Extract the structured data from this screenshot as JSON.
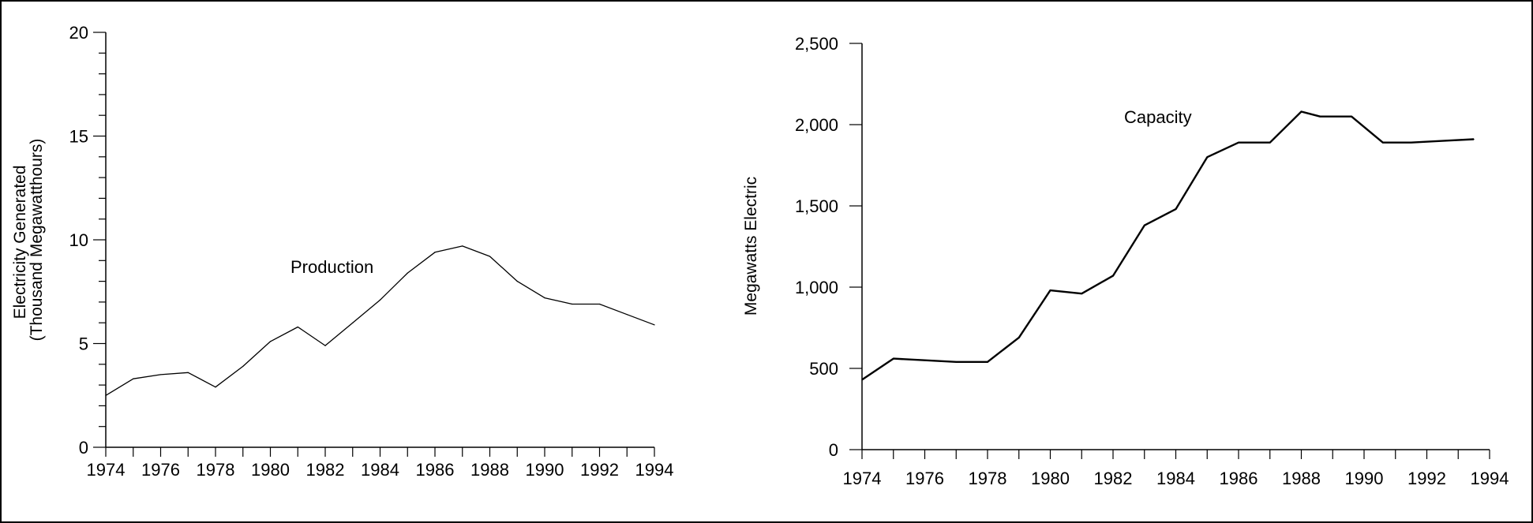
{
  "chart_data": [
    {
      "type": "line",
      "title": "",
      "xlabel": "",
      "ylabel_lines": [
        "Electricity Generated",
        "(Thousand Megawatthours)"
      ],
      "x_ticks": [
        1974,
        1976,
        1978,
        1980,
        1982,
        1984,
        1986,
        1988,
        1990,
        1992,
        1994
      ],
      "y_ticks": [
        0,
        5,
        10,
        15,
        20
      ],
      "y_tick_labels": [
        "0",
        "5",
        "10",
        "15",
        "20"
      ],
      "xlim": [
        1974,
        1994
      ],
      "ylim": [
        0,
        20
      ],
      "series_label": "Production",
      "series": [
        {
          "x": [
            1974,
            1975,
            1976,
            1977,
            1978,
            1979,
            1980,
            1981,
            1982,
            1983,
            1984,
            1985,
            1986,
            1987,
            1988,
            1989,
            1990,
            1991,
            1992,
            1993,
            1994
          ],
          "values": [
            2.5,
            3.3,
            3.5,
            3.6,
            2.9,
            3.9,
            5.1,
            5.8,
            4.9,
            6.0,
            7.1,
            8.4,
            9.4,
            9.7,
            9.2,
            8.0,
            7.2,
            6.9,
            6.9,
            6.4,
            5.9
          ]
        }
      ],
      "grid": false
    },
    {
      "type": "line",
      "title": "",
      "xlabel": "",
      "ylabel_lines": [
        "Megawatts Electric"
      ],
      "x_ticks": [
        1974,
        1976,
        1978,
        1980,
        1982,
        1984,
        1986,
        1988,
        1990,
        1992,
        1994
      ],
      "y_ticks": [
        0,
        500,
        1000,
        1500,
        2000,
        2500
      ],
      "y_tick_labels": [
        "0",
        "500",
        "1,000",
        "1,500",
        "2,000",
        "2,500"
      ],
      "xlim": [
        1974,
        1994
      ],
      "ylim": [
        0,
        2500
      ],
      "series_label": "Capacity",
      "series": [
        {
          "x": [
            1974,
            1975,
            1976,
            1977,
            1978,
            1979,
            1980,
            1981,
            1982,
            1983,
            1984,
            1985,
            1986,
            1987,
            1988,
            1988.6,
            1989.6,
            1990.6,
            1991.5,
            1992.5,
            1993.5
          ],
          "values": [
            430,
            560,
            550,
            540,
            540,
            690,
            980,
            960,
            1070,
            1380,
            1480,
            1800,
            1890,
            1890,
            2080,
            2050,
            2050,
            1890,
            1890,
            1900,
            1910
          ]
        }
      ],
      "grid": false
    }
  ]
}
